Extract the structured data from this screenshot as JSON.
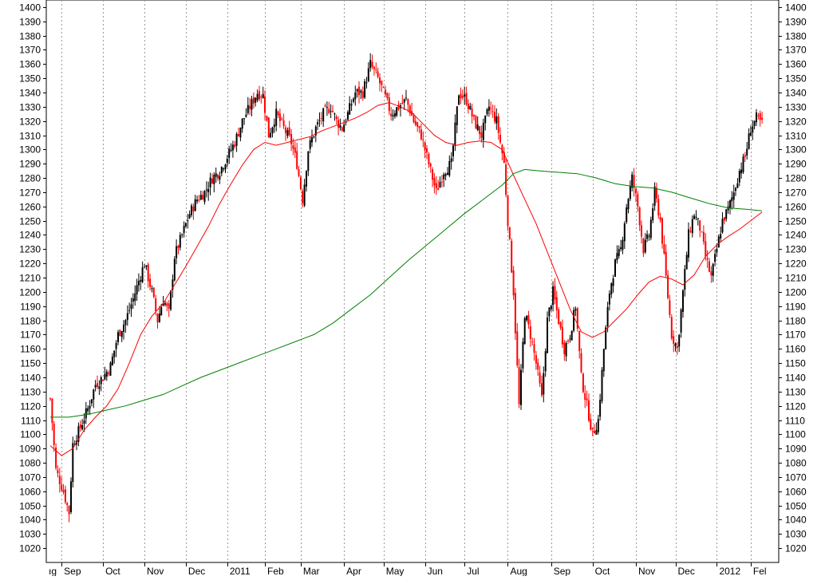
{
  "chart_data": {
    "type": "candlestick",
    "title": "",
    "xlabel": "",
    "ylabel": "",
    "ylim": [
      1010,
      1405
    ],
    "y_ticks": [
      1020,
      1030,
      1040,
      1050,
      1060,
      1070,
      1080,
      1090,
      1100,
      1110,
      1120,
      1130,
      1140,
      1150,
      1160,
      1170,
      1180,
      1190,
      1200,
      1210,
      1220,
      1230,
      1240,
      1250,
      1260,
      1270,
      1280,
      1290,
      1300,
      1310,
      1320,
      1330,
      1340,
      1350,
      1360,
      1370,
      1380,
      1390,
      1400
    ],
    "y_tick_labels": [
      "1020",
      "1030",
      "1040",
      "1050",
      "1060",
      "1070",
      "1080",
      "1090",
      "1100",
      "1110",
      "1120",
      "1130",
      "1140",
      "1150",
      "1160",
      "1170",
      "1180",
      "1190",
      "1200",
      "1210",
      "1220",
      "1230",
      "1240",
      "1250",
      "1260",
      "1270",
      "1280",
      "1290",
      "1300",
      "1310",
      "1320",
      "1330",
      "1340",
      "1350",
      "1360",
      "1370",
      "1380",
      "1390",
      "1400"
    ],
    "x_axis_labels": [
      "ıg",
      "Sep",
      "Oct",
      "Nov",
      "Dec",
      "2011",
      "Feb",
      "Mar",
      "Apr",
      "May",
      "Jun",
      "Jul",
      "Aug",
      "Sep",
      "Oct",
      "Nov",
      "Dec",
      "2012",
      "Fel"
    ],
    "x_labels_label_index": [
      0,
      6,
      28,
      50,
      72,
      94,
      114,
      133,
      156,
      177,
      199,
      220,
      243,
      266,
      288,
      311,
      332,
      354,
      372
    ],
    "x_ticks_label_index": [
      6,
      28,
      50,
      72,
      94,
      114,
      133,
      156,
      177,
      199,
      220,
      243,
      266,
      288,
      311,
      332,
      354,
      372
    ],
    "x_range_index": [
      0,
      376
    ],
    "grid_vertical": true,
    "grid_horizontal": false,
    "close_anchors": [
      [
        0,
        1125
      ],
      [
        3,
        1075
      ],
      [
        7,
        1060
      ],
      [
        10,
        1045
      ],
      [
        12,
        1093
      ],
      [
        16,
        1105
      ],
      [
        20,
        1118
      ],
      [
        24,
        1135
      ],
      [
        28,
        1140
      ],
      [
        32,
        1148
      ],
      [
        36,
        1170
      ],
      [
        40,
        1180
      ],
      [
        44,
        1195
      ],
      [
        48,
        1212
      ],
      [
        50,
        1220
      ],
      [
        54,
        1200
      ],
      [
        57,
        1180
      ],
      [
        60,
        1195
      ],
      [
        63,
        1185
      ],
      [
        66,
        1225
      ],
      [
        70,
        1240
      ],
      [
        74,
        1255
      ],
      [
        78,
        1265
      ],
      [
        82,
        1270
      ],
      [
        86,
        1280
      ],
      [
        90,
        1285
      ],
      [
        94,
        1295
      ],
      [
        98,
        1305
      ],
      [
        102,
        1320
      ],
      [
        106,
        1330
      ],
      [
        110,
        1340
      ],
      [
        113,
        1338
      ],
      [
        116,
        1310
      ],
      [
        120,
        1325
      ],
      [
        124,
        1315
      ],
      [
        128,
        1305
      ],
      [
        131,
        1290
      ],
      [
        134,
        1265
      ],
      [
        137,
        1300
      ],
      [
        141,
        1315
      ],
      [
        145,
        1325
      ],
      [
        149,
        1330
      ],
      [
        152,
        1320
      ],
      [
        155,
        1315
      ],
      [
        158,
        1325
      ],
      [
        162,
        1340
      ],
      [
        166,
        1340
      ],
      [
        170,
        1360
      ],
      [
        174,
        1350
      ],
      [
        177,
        1340
      ],
      [
        181,
        1325
      ],
      [
        185,
        1330
      ],
      [
        189,
        1335
      ],
      [
        193,
        1320
      ],
      [
        197,
        1310
      ],
      [
        201,
        1290
      ],
      [
        205,
        1270
      ],
      [
        209,
        1285
      ],
      [
        213,
        1290
      ],
      [
        217,
        1340
      ],
      [
        221,
        1335
      ],
      [
        225,
        1320
      ],
      [
        229,
        1310
      ],
      [
        233,
        1330
      ],
      [
        237,
        1320
      ],
      [
        241,
        1290
      ],
      [
        243,
        1250
      ],
      [
        246,
        1200
      ],
      [
        249,
        1120
      ],
      [
        252,
        1185
      ],
      [
        255,
        1170
      ],
      [
        258,
        1150
      ],
      [
        261,
        1125
      ],
      [
        264,
        1180
      ],
      [
        267,
        1200
      ],
      [
        270,
        1180
      ],
      [
        273,
        1160
      ],
      [
        276,
        1170
      ],
      [
        279,
        1190
      ],
      [
        282,
        1140
      ],
      [
        285,
        1120
      ],
      [
        288,
        1100
      ],
      [
        291,
        1110
      ],
      [
        294,
        1160
      ],
      [
        297,
        1200
      ],
      [
        300,
        1220
      ],
      [
        303,
        1230
      ],
      [
        306,
        1260
      ],
      [
        309,
        1280
      ],
      [
        312,
        1260
      ],
      [
        315,
        1230
      ],
      [
        318,
        1240
      ],
      [
        321,
        1270
      ],
      [
        324,
        1250
      ],
      [
        327,
        1210
      ],
      [
        330,
        1170
      ],
      [
        333,
        1160
      ],
      [
        336,
        1200
      ],
      [
        339,
        1240
      ],
      [
        342,
        1255
      ],
      [
        345,
        1245
      ],
      [
        348,
        1225
      ],
      [
        351,
        1210
      ],
      [
        354,
        1230
      ],
      [
        357,
        1250
      ],
      [
        360,
        1258
      ],
      [
        363,
        1270
      ],
      [
        366,
        1285
      ],
      [
        369,
        1295
      ],
      [
        372,
        1315
      ],
      [
        375,
        1322
      ],
      [
        378,
        1318
      ]
    ],
    "series": [
      {
        "name": "",
        "color": "#ff0000",
        "points": [
          [
            0,
            1092
          ],
          [
            6,
            1085
          ],
          [
            12,
            1090
          ],
          [
            18,
            1103
          ],
          [
            24,
            1112
          ],
          [
            30,
            1120
          ],
          [
            36,
            1132
          ],
          [
            42,
            1150
          ],
          [
            48,
            1170
          ],
          [
            54,
            1183
          ],
          [
            60,
            1192
          ],
          [
            66,
            1205
          ],
          [
            72,
            1218
          ],
          [
            78,
            1232
          ],
          [
            84,
            1246
          ],
          [
            90,
            1262
          ],
          [
            96,
            1276
          ],
          [
            102,
            1289
          ],
          [
            108,
            1300
          ],
          [
            114,
            1305
          ],
          [
            120,
            1303
          ],
          [
            126,
            1305
          ],
          [
            132,
            1307
          ],
          [
            138,
            1309
          ],
          [
            144,
            1313
          ],
          [
            150,
            1316
          ],
          [
            156,
            1319
          ],
          [
            162,
            1322
          ],
          [
            168,
            1326
          ],
          [
            174,
            1331
          ],
          [
            180,
            1333
          ],
          [
            186,
            1330
          ],
          [
            192,
            1326
          ],
          [
            198,
            1318
          ],
          [
            204,
            1310
          ],
          [
            210,
            1305
          ],
          [
            216,
            1303
          ],
          [
            222,
            1305
          ],
          [
            228,
            1306
          ],
          [
            234,
            1305
          ],
          [
            240,
            1300
          ],
          [
            246,
            1282
          ],
          [
            252,
            1265
          ],
          [
            258,
            1248
          ],
          [
            264,
            1228
          ],
          [
            270,
            1208
          ],
          [
            276,
            1188
          ],
          [
            282,
            1172
          ],
          [
            288,
            1168
          ],
          [
            294,
            1172
          ],
          [
            300,
            1180
          ],
          [
            306,
            1188
          ],
          [
            312,
            1198
          ],
          [
            318,
            1207
          ],
          [
            324,
            1211
          ],
          [
            330,
            1209
          ],
          [
            336,
            1205
          ],
          [
            342,
            1212
          ],
          [
            348,
            1225
          ],
          [
            354,
            1233
          ],
          [
            360,
            1239
          ],
          [
            366,
            1244
          ],
          [
            372,
            1250
          ],
          [
            378,
            1256
          ]
        ]
      },
      {
        "name": "",
        "color": "#008000",
        "points": [
          [
            0,
            1112
          ],
          [
            10,
            1112
          ],
          [
            20,
            1114
          ],
          [
            30,
            1117
          ],
          [
            40,
            1120
          ],
          [
            50,
            1124
          ],
          [
            60,
            1128
          ],
          [
            70,
            1134
          ],
          [
            80,
            1140
          ],
          [
            90,
            1145
          ],
          [
            100,
            1150
          ],
          [
            110,
            1155
          ],
          [
            120,
            1160
          ],
          [
            130,
            1165
          ],
          [
            140,
            1170
          ],
          [
            150,
            1178
          ],
          [
            160,
            1188
          ],
          [
            170,
            1198
          ],
          [
            180,
            1210
          ],
          [
            190,
            1222
          ],
          [
            200,
            1233
          ],
          [
            210,
            1244
          ],
          [
            220,
            1255
          ],
          [
            230,
            1265
          ],
          [
            240,
            1275
          ],
          [
            246,
            1283
          ],
          [
            252,
            1286
          ],
          [
            260,
            1285
          ],
          [
            270,
            1284
          ],
          [
            280,
            1283
          ],
          [
            290,
            1280
          ],
          [
            300,
            1276
          ],
          [
            310,
            1274
          ],
          [
            320,
            1273
          ],
          [
            330,
            1270
          ],
          [
            340,
            1266
          ],
          [
            350,
            1262
          ],
          [
            360,
            1259
          ],
          [
            370,
            1258
          ],
          [
            378,
            1257
          ]
        ]
      }
    ]
  }
}
